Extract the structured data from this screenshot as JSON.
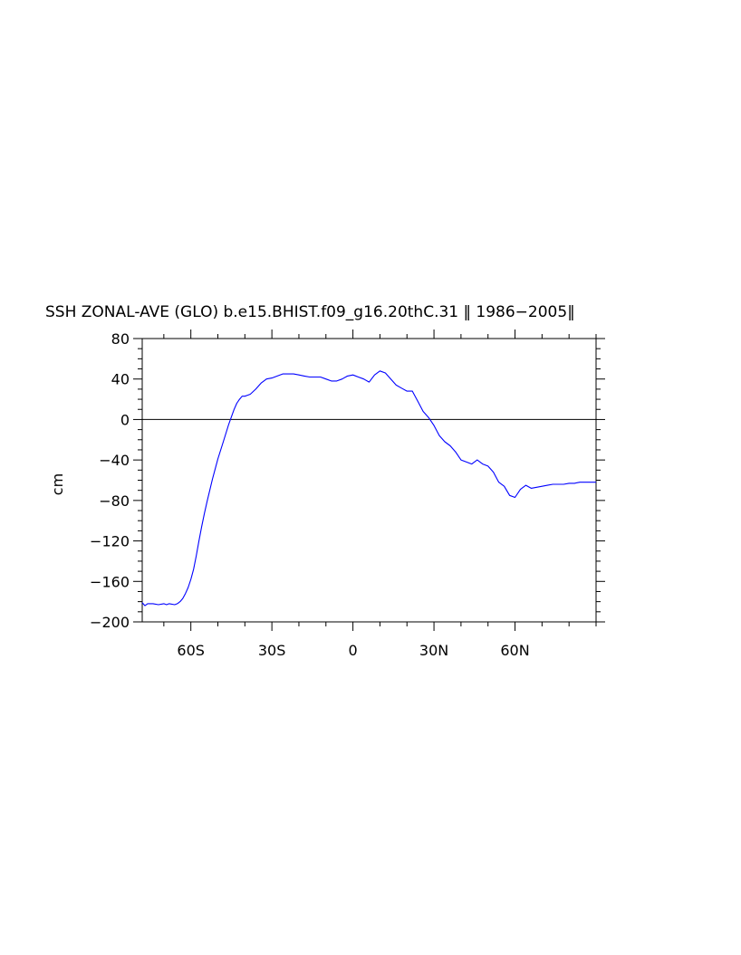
{
  "chart_data": {
    "type": "line",
    "title": "SSH ZONAL-AVE (GLO) b.e15.BHIST.f09_g16.20thC.31 ‖ 1986−2005‖",
    "ylabel": "cm",
    "xlabel": "",
    "xlim": [
      -78,
      90
    ],
    "ylim": [
      -200,
      80
    ],
    "x_ticks": [
      {
        "value": -60,
        "label": "60S"
      },
      {
        "value": -30,
        "label": "30S"
      },
      {
        "value": 0,
        "label": "0"
      },
      {
        "value": 30,
        "label": "30N"
      },
      {
        "value": 60,
        "label": "60N"
      }
    ],
    "y_ticks": [
      {
        "value": 80,
        "label": "80"
      },
      {
        "value": 40,
        "label": "40"
      },
      {
        "value": 0,
        "label": "0"
      },
      {
        "value": -40,
        "label": "−40"
      },
      {
        "value": -80,
        "label": "−80"
      },
      {
        "value": -120,
        "label": "−120"
      },
      {
        "value": -160,
        "label": "−160"
      },
      {
        "value": -200,
        "label": "−200"
      }
    ],
    "grid": false,
    "reference_line": 0,
    "series": [
      {
        "color": "#0000ff",
        "x": [
          -78,
          -77,
          -76,
          -74,
          -72,
          -70,
          -69,
          -68,
          -66,
          -65,
          -64,
          -63,
          -62,
          -61,
          -60,
          -59,
          -58,
          -57,
          -56,
          -55,
          -54,
          -52,
          -50,
          -48,
          -46,
          -44,
          -43,
          -42,
          -41,
          -40,
          -39,
          -38,
          -36,
          -34,
          -32,
          -30,
          -28,
          -26,
          -24,
          -22,
          -20,
          -18,
          -16,
          -14,
          -12,
          -10,
          -8,
          -6,
          -4,
          -2,
          0,
          2,
          4,
          6,
          8,
          10,
          12,
          14,
          16,
          18,
          20,
          22,
          24,
          26,
          28,
          30,
          32,
          34,
          36,
          38,
          40,
          42,
          44,
          46,
          48,
          50,
          52,
          54,
          56,
          58,
          60,
          62,
          64,
          66,
          68,
          70,
          72,
          74,
          76,
          78,
          80,
          82,
          84,
          86,
          88,
          90
        ],
        "y": [
          -181,
          -184,
          -182,
          -182,
          -183,
          -182,
          -183,
          -182,
          -183,
          -182,
          -180,
          -177,
          -172,
          -166,
          -158,
          -148,
          -135,
          -120,
          -106,
          -93,
          -81,
          -59,
          -39,
          -22,
          -5,
          10,
          16,
          20,
          23,
          23,
          24,
          25,
          30,
          36,
          40,
          41,
          43,
          45,
          45,
          45,
          44,
          43,
          42,
          42,
          42,
          40,
          38,
          38,
          40,
          43,
          44,
          42,
          40,
          37,
          44,
          48,
          46,
          40,
          34,
          31,
          28,
          28,
          18,
          8,
          2,
          -6,
          -16,
          -22,
          -26,
          -32,
          -40,
          -42,
          -44,
          -40,
          -44,
          -46,
          -52,
          -62,
          -66,
          -75,
          -77,
          -69,
          -65,
          -68,
          -67,
          -66,
          -65,
          -64,
          -64,
          -64,
          -63,
          -63,
          -62,
          -62,
          -62,
          -62
        ]
      }
    ]
  }
}
